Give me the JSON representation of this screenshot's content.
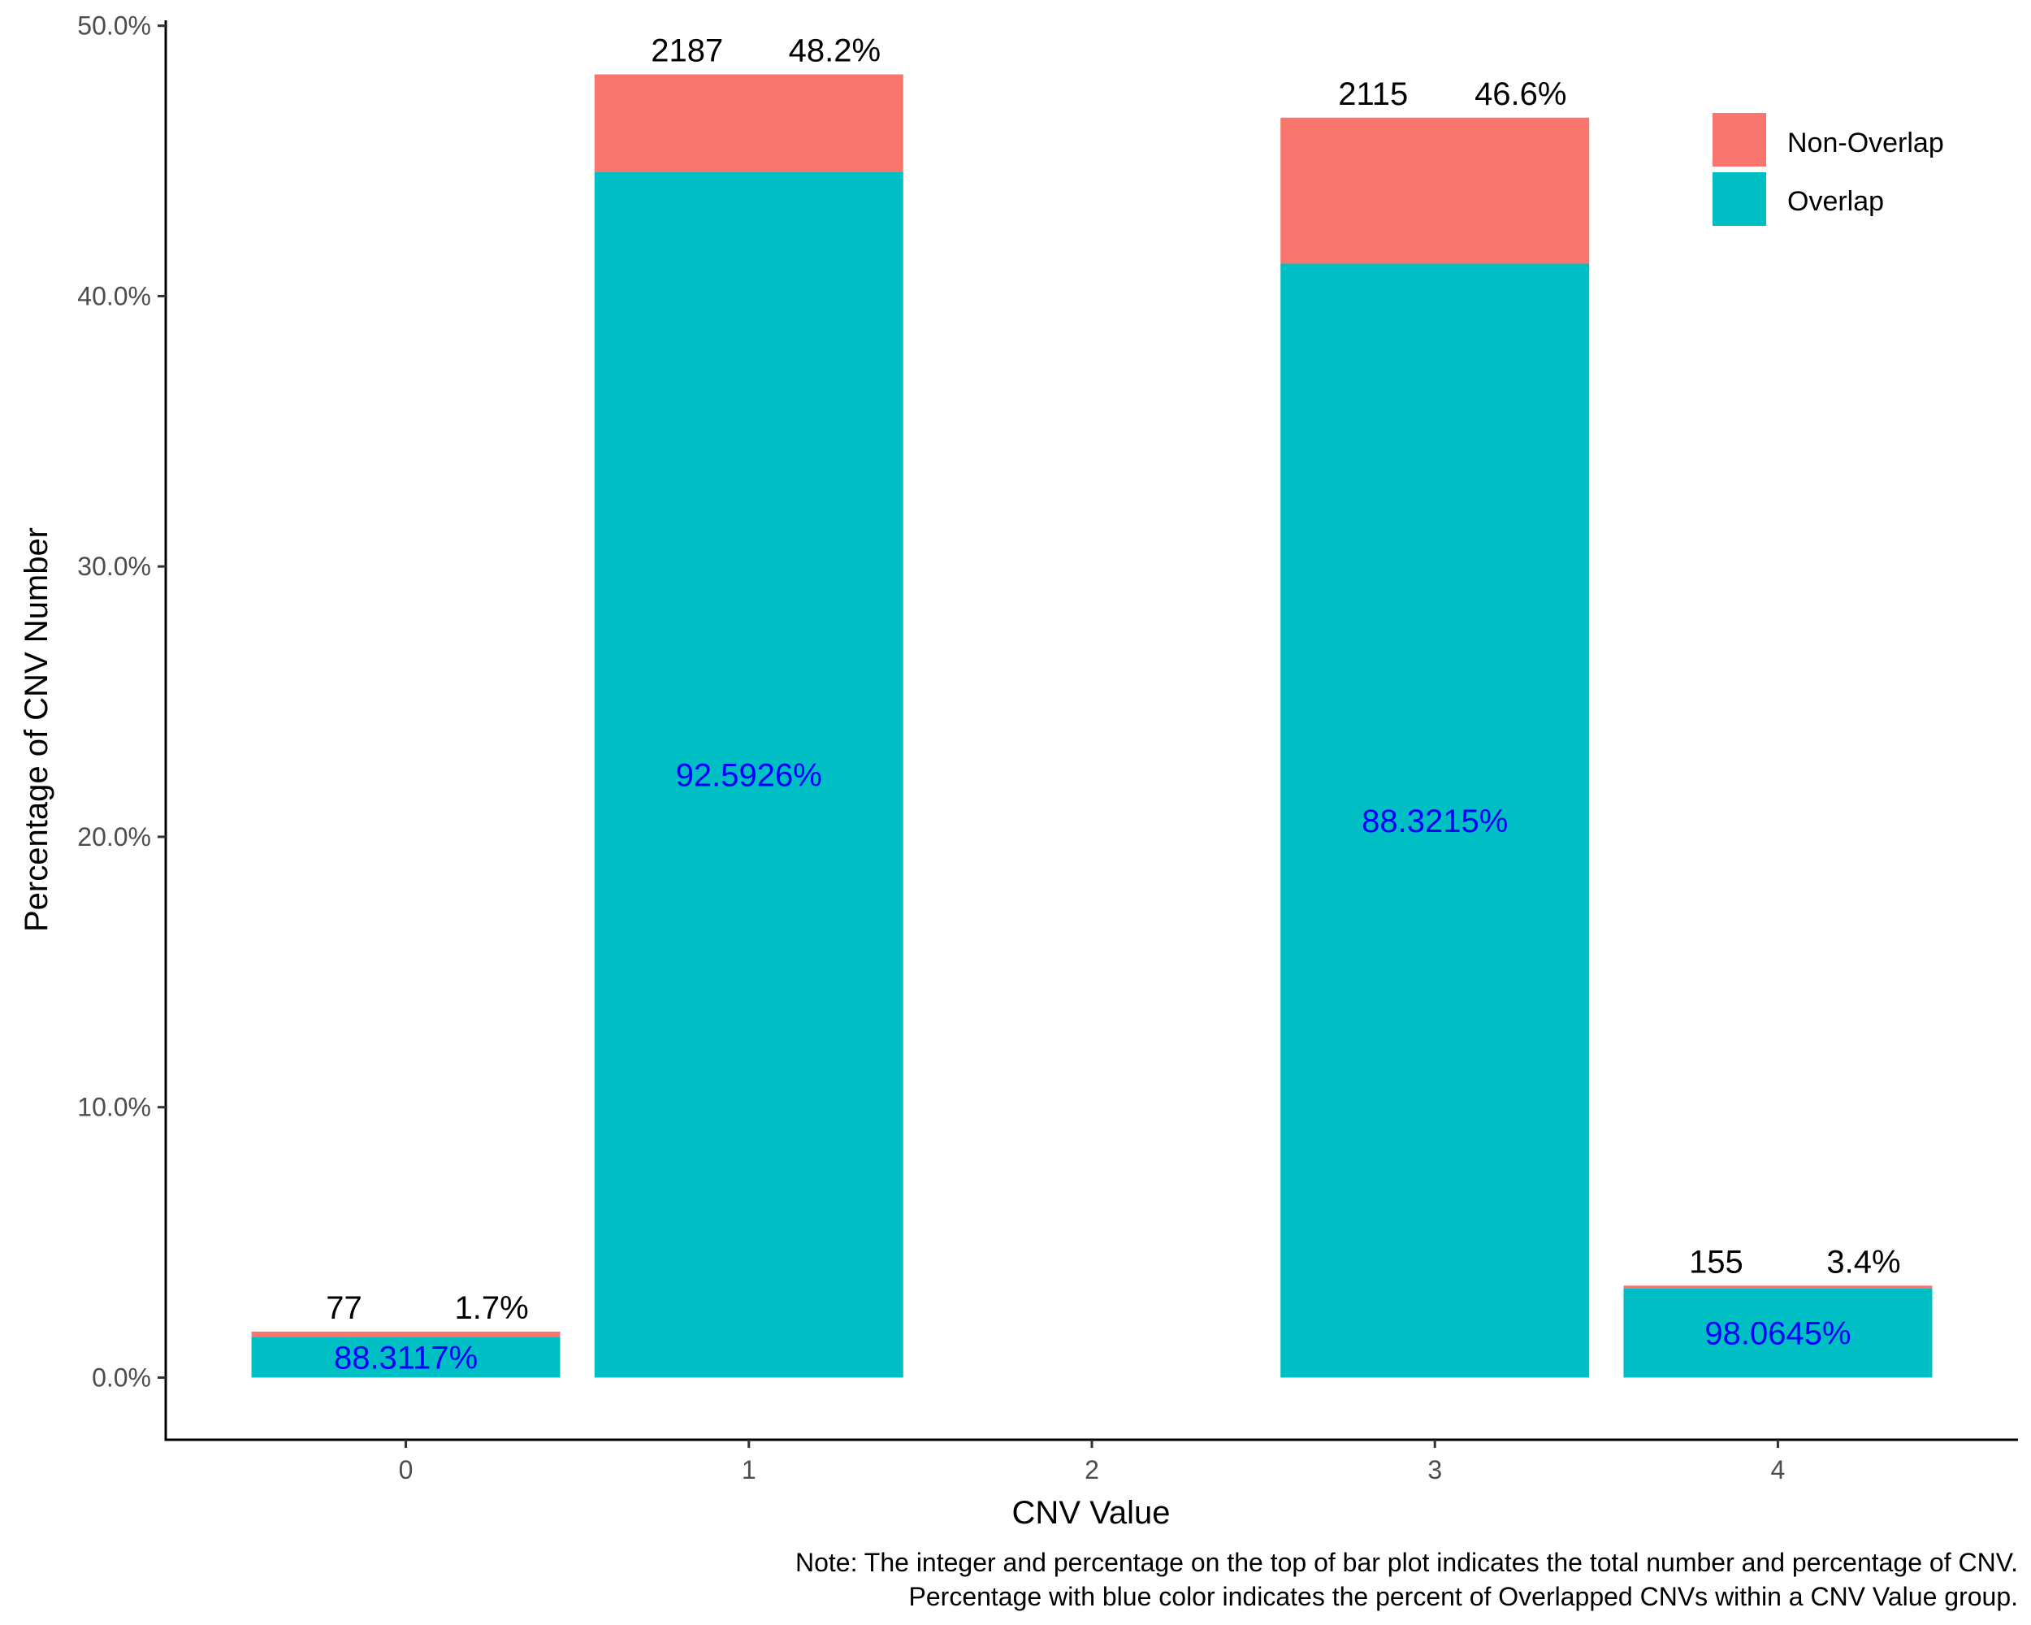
{
  "chart_data": {
    "type": "bar",
    "stacked": true,
    "categories": [
      "0",
      "1",
      "2",
      "3",
      "4"
    ],
    "series": [
      {
        "name": "Non-Overlap",
        "color": "#F8766D",
        "values": [
          0.2,
          3.6,
          0,
          5.4,
          0.1
        ]
      },
      {
        "name": "Overlap",
        "color": "#00BFC4",
        "values": [
          1.5,
          44.6,
          0,
          41.2,
          3.3
        ]
      }
    ],
    "totals": [
      1.7,
      48.2,
      0,
      46.6,
      3.4
    ],
    "top_labels": [
      {
        "category": "0",
        "count": "77",
        "percent": "1.7%"
      },
      {
        "category": "1",
        "count": "2187",
        "percent": "48.2%"
      },
      {
        "category": "3",
        "count": "2115",
        "percent": "46.6%"
      },
      {
        "category": "4",
        "count": "155",
        "percent": "3.4%"
      }
    ],
    "overlap_labels": [
      {
        "category": "0",
        "text": "88.3117%"
      },
      {
        "category": "1",
        "text": "92.5926%"
      },
      {
        "category": "3",
        "text": "88.3215%"
      },
      {
        "category": "4",
        "text": "98.0645%"
      }
    ],
    "overlap_label_color": "#0000FF",
    "xlabel": "CNV Value",
    "ylabel": "Percentage of CNV Number",
    "ylim": [
      -2.3,
      50.2
    ],
    "yticks": [
      0,
      10,
      20,
      30,
      40,
      50
    ],
    "ytick_labels": [
      "0.0%",
      "10.0%",
      "20.0%",
      "30.0%",
      "40.0%",
      "50.0%"
    ],
    "xticks": [
      "0",
      "1",
      "2",
      "3",
      "4"
    ],
    "grid": false,
    "legend_position": "top-right",
    "legend": [
      "Non-Overlap",
      "Overlap"
    ],
    "caption": [
      "Note: The integer and percentage on the top of bar plot indicates the total number and percentage of CNV.",
      "Percentage with blue color indicates the percent of Overlapped CNVs within a CNV Value group."
    ]
  }
}
